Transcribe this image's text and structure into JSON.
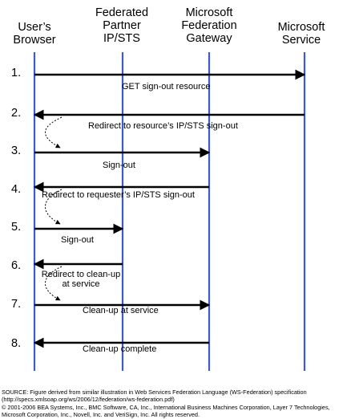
{
  "participants": [
    {
      "id": "browser",
      "label": "User’s\nBrowser"
    },
    {
      "id": "partner",
      "label": "Federated\nPartner\nIP/STS"
    },
    {
      "id": "gateway",
      "label": "Microsoft\nFederation\nGateway"
    },
    {
      "id": "service",
      "label": "Microsoft\nService"
    }
  ],
  "steps": [
    {
      "number": "1.",
      "message": "GET sign-out resource",
      "from": "browser",
      "to": "service"
    },
    {
      "number": "2.",
      "message": "Redirect to resource’s IP/STS sign-out",
      "from": "service",
      "to": "browser"
    },
    {
      "number": "3.",
      "message": "Sign-out",
      "from": "browser",
      "to": "gateway"
    },
    {
      "number": "4.",
      "message": "Redirect to requester’s IP/STS sign-out",
      "from": "gateway",
      "to": "browser"
    },
    {
      "number": "5.",
      "message": "Sign-out",
      "from": "browser",
      "to": "partner"
    },
    {
      "number": "6.",
      "message": "Redirect to clean-up\nat service",
      "from": "partner",
      "to": "browser"
    },
    {
      "number": "7.",
      "message": "Clean-up at service",
      "from": "browser",
      "to": "gateway"
    },
    {
      "number": "8.",
      "message": "Clean-up complete",
      "from": "gateway",
      "to": "browser"
    }
  ],
  "source_note": [
    "SOURCE: Figure derived from similar illustration in Web Services Federation Language (WS-Federation) specification",
    "(http://specs.xmlsoap.org/ws/2006/12/federation/ws-federation.pdf)",
    "© 2001-2006 BEA Systems, Inc., BMC Software, CA, Inc., International Business Machines Corporation, Layer 7 Technologies,",
    "Microsoft Corporation, Inc., Novell, Inc. and VeriSign, Inc. All rights reserved."
  ],
  "colors": {
    "lifeline": "#3b5bd6",
    "arrow": "#000000",
    "text": "#000000"
  }
}
